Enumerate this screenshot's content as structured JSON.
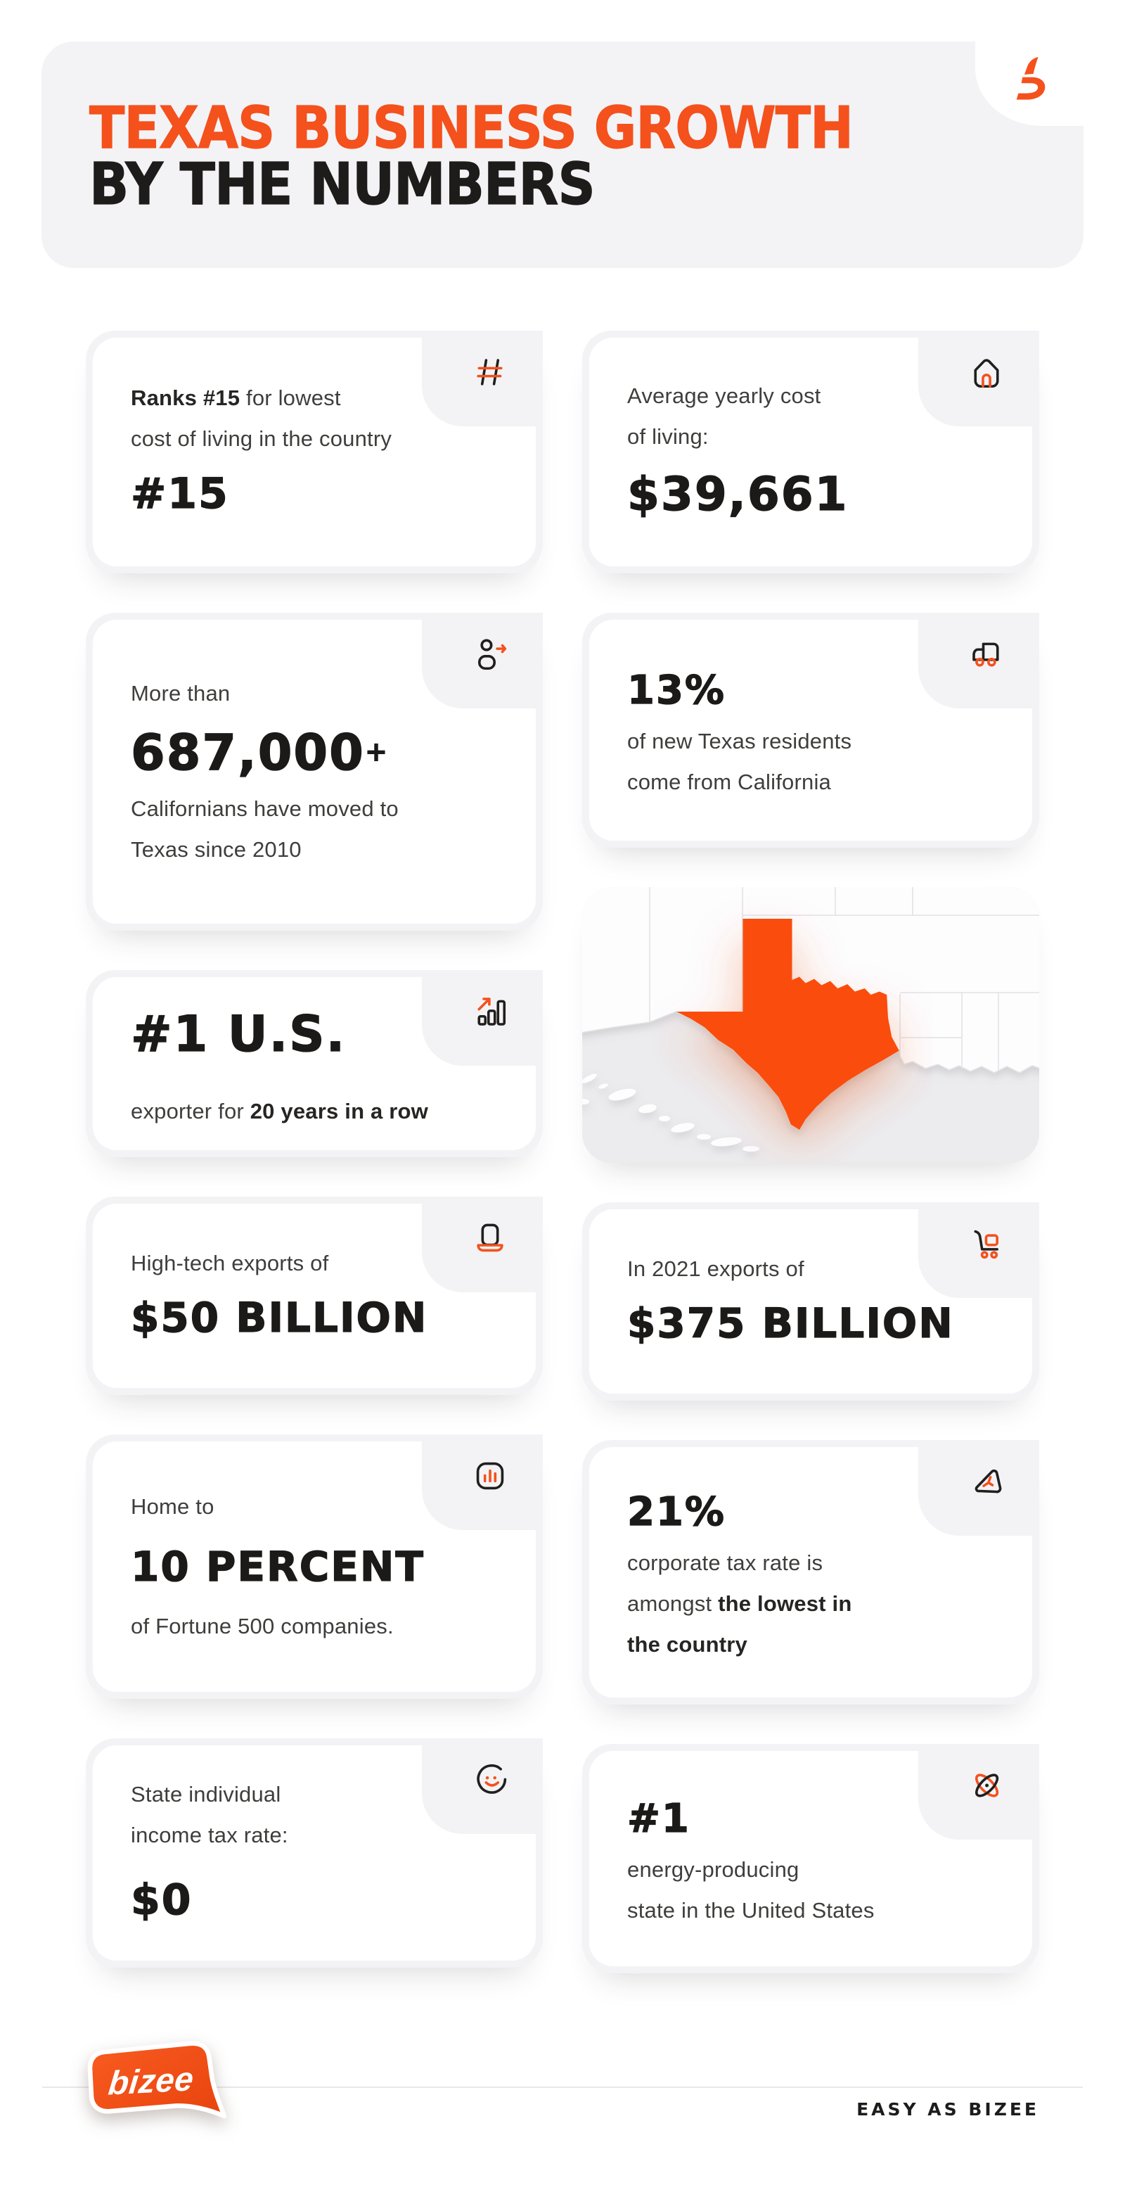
{
  "meta": {
    "title": "Texas Business Growth by the Numbers"
  },
  "colors": {
    "accent_orange": "#F4511D",
    "texas_orange": "#FA4E0F",
    "card_gray": "#F3F3F5",
    "ink": "#1B1A18",
    "body_text": "#3F3E3C",
    "divider": "#E8E8E9"
  },
  "header": {
    "title_line1": "TEXAS BUSINESS GROWTH",
    "title_line2": "BY THE NUMBERS",
    "logo_icon": "bizee-mark-icon"
  },
  "cards": [
    {
      "name": "cost-of-living-rank",
      "icon": "hash-icon",
      "blocks": [
        {
          "type": "text",
          "segments": [
            {
              "text": "Ranks #15 ",
              "bold": true
            },
            {
              "text": "for lowest"
            }
          ]
        },
        {
          "type": "text",
          "segments": [
            {
              "text": "cost of living in the country"
            }
          ]
        },
        {
          "type": "big",
          "text": "#15"
        }
      ]
    },
    {
      "name": "avg-yearly-cost",
      "icon": "house-icon",
      "blocks": [
        {
          "type": "text",
          "segments": [
            {
              "text": "Average yearly cost"
            }
          ]
        },
        {
          "type": "text",
          "segments": [
            {
              "text": "of living:"
            }
          ]
        },
        {
          "type": "big",
          "text": "$39,661"
        }
      ]
    },
    {
      "name": "californians-moved",
      "icon": "person-arrow-icon",
      "blocks": [
        {
          "type": "text",
          "segments": [
            {
              "text": "More than"
            }
          ]
        },
        {
          "type": "big",
          "text": "687,000+"
        },
        {
          "type": "text",
          "segments": [
            {
              "text": "Californians have moved to"
            }
          ]
        },
        {
          "type": "text",
          "segments": [
            {
              "text": "Texas since 2010"
            }
          ]
        }
      ]
    },
    {
      "name": "new-residents-california",
      "icon": "truck-icon",
      "blocks": [
        {
          "type": "big",
          "text": "13%"
        },
        {
          "type": "text",
          "segments": [
            {
              "text": "of new Texas residents"
            }
          ]
        },
        {
          "type": "text",
          "segments": [
            {
              "text": "come from California"
            }
          ]
        }
      ]
    },
    {
      "name": "texas-map",
      "type": "map",
      "highlighted_state": "Texas"
    },
    {
      "name": "us-exporter",
      "icon": "growth-bars-icon",
      "blocks": [
        {
          "type": "big",
          "text": "#1 U.S."
        },
        {
          "type": "text",
          "segments": [
            {
              "text": "exporter for "
            },
            {
              "text": "20 years in a row",
              "bold": true
            }
          ]
        }
      ]
    },
    {
      "name": "high-tech-exports",
      "icon": "laptop-icon",
      "blocks": [
        {
          "type": "text",
          "segments": [
            {
              "text": "High-tech exports of"
            }
          ]
        },
        {
          "type": "big",
          "text": "$50 BILLION"
        }
      ]
    },
    {
      "name": "exports-2021",
      "icon": "cart-icon",
      "blocks": [
        {
          "type": "text",
          "segments": [
            {
              "text": "In 2021 exports of"
            }
          ]
        },
        {
          "type": "big",
          "text": "$375 BILLION"
        }
      ]
    },
    {
      "name": "fortune-500",
      "icon": "chart-square-icon",
      "blocks": [
        {
          "type": "text",
          "segments": [
            {
              "text": "Home to"
            }
          ]
        },
        {
          "type": "big",
          "text": "10 PERCENT"
        },
        {
          "type": "text",
          "segments": [
            {
              "text": "of Fortune 500 companies."
            }
          ]
        }
      ]
    },
    {
      "name": "corporate-tax",
      "icon": "paper-plane-icon",
      "blocks": [
        {
          "type": "big",
          "text": "21%"
        },
        {
          "type": "text",
          "segments": [
            {
              "text": "corporate tax rate is"
            }
          ]
        },
        {
          "type": "text",
          "segments": [
            {
              "text": "amongst "
            },
            {
              "text": "the lowest in",
              "bold": true
            }
          ]
        },
        {
          "type": "text",
          "segments": [
            {
              "text": "the country",
              "bold": true
            }
          ]
        }
      ]
    },
    {
      "name": "income-tax",
      "icon": "smiley-icon",
      "blocks": [
        {
          "type": "text",
          "segments": [
            {
              "text": "State individual"
            }
          ]
        },
        {
          "type": "text",
          "segments": [
            {
              "text": "income tax rate:"
            }
          ]
        },
        {
          "type": "big",
          "text": "$0"
        }
      ]
    },
    {
      "name": "energy-producing",
      "icon": "atom-icon",
      "blocks": [
        {
          "type": "big",
          "text": "#1"
        },
        {
          "type": "text",
          "segments": [
            {
              "text": "energy-producing"
            }
          ]
        },
        {
          "type": "text",
          "segments": [
            {
              "text": "state in the United States"
            }
          ]
        }
      ]
    }
  ],
  "footer": {
    "logo_text": "bizee",
    "tagline": "EASY AS BIZEE"
  }
}
